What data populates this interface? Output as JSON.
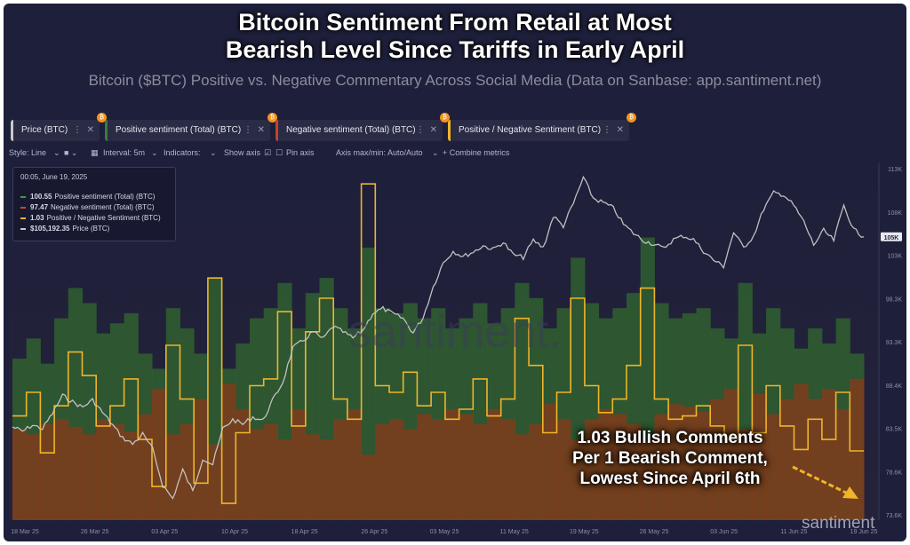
{
  "title": {
    "line1": "Bitcoin Sentiment From Retail at Most",
    "line2": "Bearish Level Since Tariffs in Early April"
  },
  "subtitle": "Bitcoin ($BTC) Positive vs. Negative Commentary Across Social Media (Data on Sanbase: app.santiment.net)",
  "tabs": [
    {
      "label": "Price (BTC)",
      "color": "#c8c8c8"
    },
    {
      "label": "Positive sentiment (Total) (BTC)",
      "color": "#3a7d3a"
    },
    {
      "label": "Negative sentiment (Total) (BTC)",
      "color": "#c8402a"
    },
    {
      "label": "Positive / Negative Sentiment (BTC)",
      "color": "#f0b429"
    }
  ],
  "toolbar": {
    "style": "Style: Line",
    "interval": "Interval: 5m",
    "indicators": "Indicators:",
    "show_axis": "Show axis",
    "pin_axis": "Pin axis",
    "axis_maxmin": "Axis max/min: Auto/Auto",
    "combine": "+ Combine metrics"
  },
  "legend": {
    "timestamp": "00:05, June 19, 2025",
    "rows": [
      {
        "value": "100.55",
        "label": "Positive sentiment (Total) (BTC)",
        "color": "#3a9d4a"
      },
      {
        "value": "97.47",
        "label": "Negative sentiment (Total) (BTC)",
        "color": "#d0432a"
      },
      {
        "value": "1.03",
        "label": "Positive / Negative Sentiment (BTC)",
        "color": "#f0b429"
      },
      {
        "value": "$105,192.35",
        "label": "Price (BTC)",
        "color": "#c8c8c8"
      }
    ]
  },
  "annotation": {
    "line1": "1.03 Bullish Comments",
    "line2": "Per 1 Bearish Comment,",
    "line3": "Lowest Since April 6th"
  },
  "watermark": "santiment",
  "watermark_center": "santiment.",
  "price_badge": "105K",
  "colors": {
    "background": "#1e1f3a",
    "price": "#c8c8c8",
    "positive": "#2f5f30",
    "negative": "#8a3a1a",
    "ratio": "#f0b429"
  },
  "chart_data": {
    "type": "line",
    "x_ticks": [
      "18 Mar 25",
      "26 Mar 25",
      "03 Apr 25",
      "10 Apr 25",
      "18 Apr 25",
      "26 Apr 25",
      "03 May 25",
      "11 May 25",
      "19 May 25",
      "26 May 25",
      "03 Jun 25",
      "11 Jun 25",
      "19 Jun 25"
    ],
    "y_ticks": [
      "113K",
      "108K",
      "103K",
      "98.3K",
      "93.3K",
      "88.4K",
      "83.5K",
      "78.6K",
      "73.6K"
    ],
    "ylim": [
      73600,
      113000
    ],
    "price_series": {
      "name": "Price (BTC)",
      "values": [
        84000,
        83500,
        84200,
        83800,
        85500,
        87500,
        86800,
        86200,
        87000,
        85600,
        84200,
        82800,
        82100,
        83200,
        81500,
        77500,
        76000,
        79200,
        76800,
        80500,
        79800,
        83800,
        84800,
        84300,
        85100,
        84700,
        87000,
        89000,
        92800,
        93600,
        94600,
        93800,
        95200,
        94600,
        93900,
        94800,
        96700,
        97200,
        96600,
        96100,
        94500,
        96200,
        99600,
        102300,
        103600,
        103000,
        103500,
        104200,
        103800,
        104600,
        103200,
        102900,
        104800,
        104000,
        107500,
        106400,
        108900,
        111800,
        109500,
        109000,
        108400,
        106600,
        105600,
        104800,
        104400,
        103900,
        104900,
        105300,
        104900,
        103600,
        102600,
        101900,
        105700,
        104000,
        105300,
        108300,
        110100,
        109900,
        108700,
        106900,
        104300,
        105900,
        104800,
        108700,
        106000,
        105200
      ]
    },
    "ratio_series": {
      "name": "Positive / Negative Sentiment (BTC)",
      "values": [
        1.55,
        1.9,
        1.0,
        1.7,
        2.5,
        2.15,
        1.4,
        1.7,
        2.1,
        1.2,
        0.5,
        2.6,
        1.8,
        0.55,
        3.6,
        0.25,
        1.3,
        2.0,
        2.1,
        3.1,
        1.4,
        2.8,
        3.3,
        1.8,
        1.5,
        5.0,
        2.0,
        1.9,
        2.2,
        1.7,
        1.9,
        1.5,
        1.65,
        2.1,
        1.55,
        1.8,
        3.0,
        2.3,
        1.3,
        1.9,
        3.3,
        2.0,
        1.6,
        1.8,
        2.3,
        3.45,
        1.8,
        1.5,
        1.55,
        1.7,
        1.4,
        1.2,
        2.6,
        1.3,
        2.0,
        1.4,
        1.05,
        1.5,
        1.2,
        1.9,
        1.03
      ]
    },
    "positive_series": {
      "name": "Positive sentiment (Total) (BTC)",
      "values": [
        320,
        360,
        310,
        400,
        460,
        430,
        370,
        390,
        410,
        330,
        300,
        420,
        380,
        330,
        480,
        300,
        350,
        400,
        420,
        470,
        380,
        450,
        480,
        420,
        380,
        540,
        420,
        410,
        430,
        400,
        420,
        380,
        400,
        430,
        390,
        420,
        470,
        440,
        380,
        420,
        520,
        430,
        400,
        420,
        450,
        560,
        430,
        400,
        410,
        420,
        380,
        360,
        470,
        370,
        420,
        380,
        340,
        380,
        350,
        400,
        330
      ]
    },
    "negative_series": {
      "name": "Negative sentiment (Total) (BTC)",
      "values": [
        180,
        170,
        190,
        200,
        185,
        170,
        200,
        190,
        175,
        210,
        260,
        170,
        190,
        240,
        150,
        270,
        220,
        180,
        190,
        160,
        220,
        170,
        160,
        200,
        220,
        130,
        190,
        200,
        180,
        210,
        200,
        220,
        210,
        190,
        220,
        200,
        170,
        190,
        230,
        200,
        160,
        200,
        220,
        210,
        190,
        160,
        210,
        230,
        225,
        215,
        240,
        260,
        180,
        250,
        210,
        240,
        270,
        240,
        260,
        220,
        280
      ]
    }
  }
}
